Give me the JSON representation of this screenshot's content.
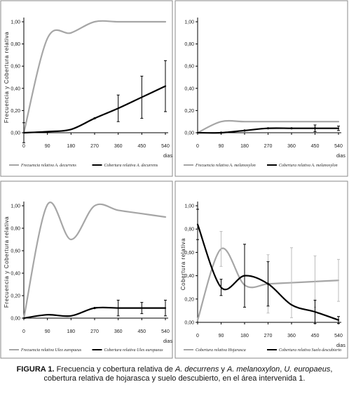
{
  "chart_data": [
    {
      "type": "line",
      "xlabel": "dias",
      "ylabel": "Frecuencia  y  Cobertura  relativa",
      "x": [
        0,
        90,
        180,
        270,
        360,
        450,
        540
      ],
      "x_ticks": [
        "0",
        "90",
        "180",
        "270",
        "360",
        "450",
        "540"
      ],
      "y_ticks": [
        "0,00",
        "0,20",
        "0,40",
        "0,60",
        "0,80",
        "1,00"
      ],
      "ylim": [
        0,
        1
      ],
      "grid": false,
      "legend_position": "bottom",
      "series": [
        {
          "name": "Frecuencia relativa A. decurrens",
          "color": "#a6a6a6",
          "values": [
            0.0,
            0.85,
            0.9,
            1.0,
            1.0,
            1.0,
            1.0
          ],
          "errors": null
        },
        {
          "name": "Cobertura relativa A. decurrens",
          "color": "#000000",
          "values": [
            0.0,
            0.01,
            0.03,
            0.13,
            0.22,
            0.32,
            0.42
          ],
          "errors": [
            0.09,
            0.0,
            0.0,
            0.0,
            0.12,
            0.19,
            0.23
          ]
        }
      ]
    },
    {
      "type": "line",
      "xlabel": "dias",
      "ylabel": "",
      "x": [
        0,
        90,
        180,
        270,
        360,
        450,
        540
      ],
      "x_ticks": [
        "0",
        "90",
        "180",
        "270",
        "360",
        "450",
        "540"
      ],
      "y_ticks": [
        "0,00",
        "0,20",
        "0,40",
        "0,60",
        "0,80",
        "1,00"
      ],
      "ylim": [
        0,
        1
      ],
      "grid": false,
      "legend_position": "bottom",
      "series": [
        {
          "name": "Frecuencia relativa A. melanoxylon",
          "color": "#a6a6a6",
          "values": [
            0.0,
            0.1,
            0.1,
            0.1,
            0.1,
            0.1,
            0.1
          ],
          "errors": null
        },
        {
          "name": "Cobertura relativa A. melanoxylon",
          "color": "#000000",
          "values": [
            0.0,
            0.0,
            0.02,
            0.04,
            0.04,
            0.04,
            0.04
          ],
          "errors": [
            0.0,
            0.0,
            0.0,
            0.0,
            0.0,
            0.03,
            0.02
          ]
        }
      ]
    },
    {
      "type": "line",
      "xlabel": "dias",
      "ylabel": "Frecuencia  y  Cobertura  relativa",
      "x": [
        0,
        90,
        180,
        270,
        360,
        450,
        540
      ],
      "x_ticks": [
        "0",
        "90",
        "180",
        "270",
        "360",
        "450",
        "540"
      ],
      "y_ticks": [
        "0,00",
        "0,20",
        "0,40",
        "0,60",
        "0,80",
        "1,00"
      ],
      "ylim": [
        0,
        1
      ],
      "grid": false,
      "legend_position": "bottom",
      "series": [
        {
          "name": "Frecuencia relativa Ulex europaeus",
          "color": "#a6a6a6",
          "values": [
            0.0,
            1.01,
            0.7,
            1.0,
            0.96,
            0.93,
            0.9
          ],
          "errors": null
        },
        {
          "name": "Cobertura relativa Ulex europaeus",
          "color": "#000000",
          "values": [
            0.0,
            0.03,
            0.02,
            0.09,
            0.09,
            0.09,
            0.09
          ],
          "errors": [
            0.0,
            0.0,
            0.0,
            0.0,
            0.07,
            0.05,
            0.07
          ]
        }
      ]
    },
    {
      "type": "line",
      "xlabel": "dias",
      "ylabel": "Cobertura  relativa",
      "x": [
        0,
        90,
        180,
        270,
        360,
        450,
        540
      ],
      "x_ticks": [
        "0",
        "90",
        "180",
        "270",
        "360",
        "450",
        "540"
      ],
      "y_ticks": [
        "0,00",
        "0,20",
        "0,40",
        "0,60",
        "0,80",
        "1,00"
      ],
      "ylim": [
        0,
        1
      ],
      "grid": false,
      "legend_position": "bottom",
      "series": [
        {
          "name": "Cobertura relativa Hojarasca",
          "color": "#a6a6a6",
          "values": [
            0.02,
            0.63,
            0.32,
            0.33,
            0.34,
            0.35,
            0.36
          ],
          "errors": [
            0.0,
            0.15,
            0.0,
            0.25,
            0.3,
            0.22,
            0.18
          ]
        },
        {
          "name": "Cobertura relativa Suelo descubierto",
          "color": "#000000",
          "values": [
            0.84,
            0.3,
            0.4,
            0.33,
            0.15,
            0.09,
            0.02
          ],
          "errors": [
            0.13,
            0.07,
            0.27,
            0.19,
            0.0,
            0.1,
            0.03
          ]
        }
      ]
    }
  ],
  "caption": {
    "label": "FIGURA 1.",
    "part1": " Frecuencia y cobertura relativa de ",
    "sp1": "A. decurrens",
    "part2": " y ",
    "sp2": "A. melanoxylon",
    "part3": ", ",
    "sp3": "U. europaeus",
    "part4": ", cobertura relativa de hojarasca y suelo descubierto, en el área intervenida 1."
  }
}
